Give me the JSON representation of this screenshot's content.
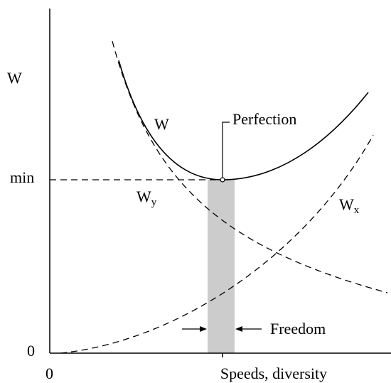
{
  "axes": {
    "y_label": "W",
    "y_min_label": "min",
    "y_zero": "0",
    "x_zero": "0",
    "x_label": "Speeds, diversity"
  },
  "curves": {
    "total": {
      "label": "W"
    },
    "wy": {
      "label": "W",
      "subscript": "y"
    },
    "wx": {
      "label": "W",
      "subscript": "x"
    }
  },
  "annotations": {
    "optimum": "Perfection",
    "band": "Freedom"
  }
}
